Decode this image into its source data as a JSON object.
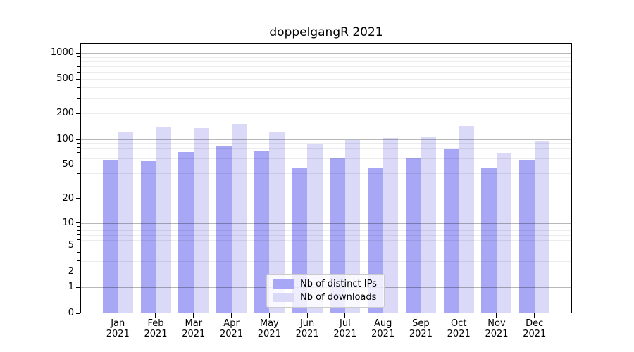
{
  "title": "doppelgangR 2021",
  "chart_data": {
    "type": "bar",
    "title": "doppelgangR 2021",
    "categories": [
      "Jan",
      "Feb",
      "Mar",
      "Apr",
      "May",
      "Jun",
      "Jul",
      "Aug",
      "Sep",
      "Oct",
      "Nov",
      "Dec"
    ],
    "year_label": "2021",
    "series": [
      {
        "name": "Nb of distinct IPs",
        "color": "#a7a7f5",
        "values": [
          58,
          55,
          71,
          82,
          74,
          47,
          61,
          46,
          61,
          78,
          47,
          58
        ]
      },
      {
        "name": "Nb of downloads",
        "color": "#dadaf8",
        "values": [
          122,
          140,
          135,
          152,
          121,
          89,
          97,
          104,
          107,
          143,
          70,
          96
        ]
      }
    ],
    "xlabel": "",
    "ylabel": "",
    "yscale": "log1p",
    "ylim": [
      0,
      1300
    ],
    "yticks": [
      0,
      1,
      2,
      5,
      10,
      20,
      50,
      100,
      200,
      500,
      1000
    ],
    "grid": "horizontal, minor light / major gray, drawn over bars",
    "legend_position": "lower center",
    "bar_group_width": 0.8
  }
}
